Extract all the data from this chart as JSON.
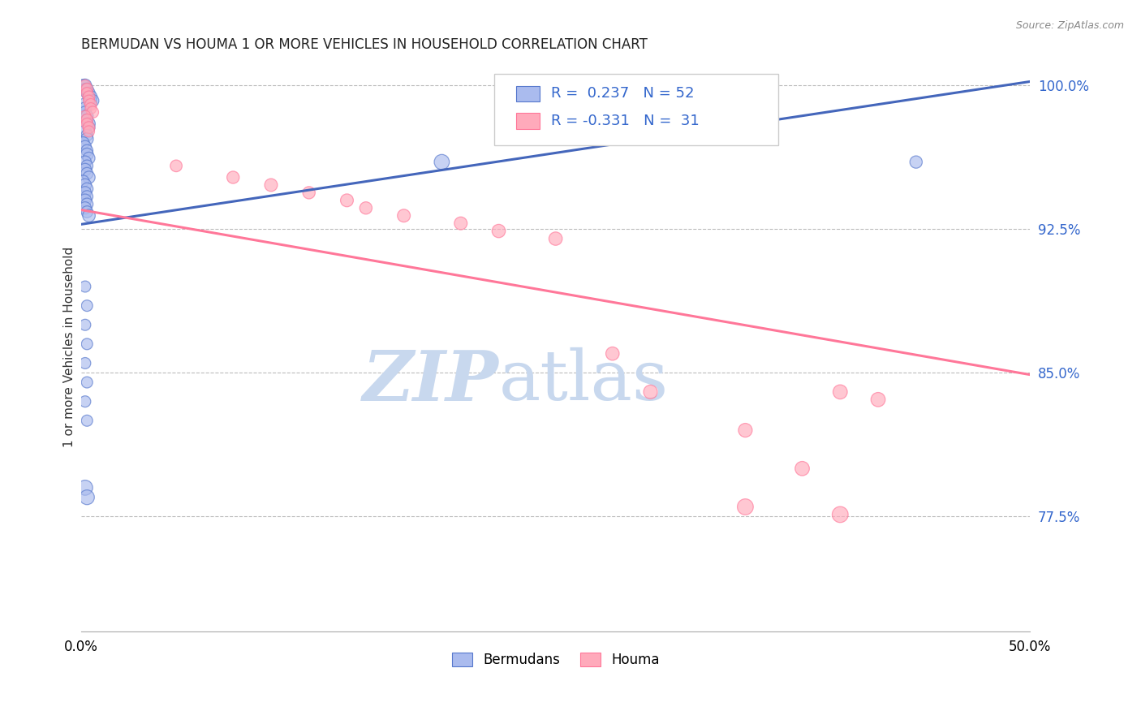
{
  "title": "BERMUDAN VS HOUMA 1 OR MORE VEHICLES IN HOUSEHOLD CORRELATION CHART",
  "source": "Source: ZipAtlas.com",
  "ylabel": "1 or more Vehicles in Household",
  "xlim": [
    0.0,
    0.5
  ],
  "ylim": [
    0.715,
    1.012
  ],
  "xticks": [
    0.0,
    0.1,
    0.2,
    0.3,
    0.4,
    0.5
  ],
  "xticklabels": [
    "0.0%",
    "",
    "",
    "",
    "",
    "50.0%"
  ],
  "yticks": [
    0.775,
    0.85,
    0.925,
    1.0
  ],
  "yticklabels": [
    "77.5%",
    "85.0%",
    "92.5%",
    "100.0%"
  ],
  "legend_r_blue": "R =  0.237",
  "legend_n_blue": "N = 52",
  "legend_r_pink": "R = -0.331",
  "legend_n_pink": "N =  31",
  "blue_fill": "#AABBEE",
  "blue_edge": "#5577CC",
  "pink_fill": "#FFAABB",
  "pink_edge": "#FF7799",
  "blue_line_color": "#4466BB",
  "pink_line_color": "#FF7799",
  "grid_color": "#BBBBBB",
  "watermark_zip": "ZIP",
  "watermark_atlas": "atlas",
  "watermark_color": "#DDEEFF",
  "blue_scatter_x": [
    0.001,
    0.002,
    0.002,
    0.003,
    0.003,
    0.004,
    0.004,
    0.005,
    0.005,
    0.006,
    0.001,
    0.002,
    0.002,
    0.003,
    0.003,
    0.004,
    0.004,
    0.002,
    0.003,
    0.003,
    0.001,
    0.002,
    0.003,
    0.003,
    0.004,
    0.002,
    0.003,
    0.002,
    0.003,
    0.004,
    0.001,
    0.002,
    0.003,
    0.002,
    0.003,
    0.002,
    0.003,
    0.002,
    0.003,
    0.004,
    0.002,
    0.003,
    0.002,
    0.003,
    0.002,
    0.003,
    0.002,
    0.003,
    0.002,
    0.003,
    0.19,
    0.44
  ],
  "blue_scatter_y": [
    1.0,
    1.0,
    0.998,
    0.998,
    0.996,
    0.996,
    0.994,
    0.994,
    0.992,
    0.992,
    0.99,
    0.988,
    0.986,
    0.984,
    0.982,
    0.98,
    0.978,
    0.976,
    0.974,
    0.972,
    0.97,
    0.968,
    0.966,
    0.964,
    0.962,
    0.96,
    0.958,
    0.956,
    0.954,
    0.952,
    0.95,
    0.948,
    0.946,
    0.944,
    0.942,
    0.94,
    0.938,
    0.936,
    0.934,
    0.932,
    0.895,
    0.885,
    0.875,
    0.865,
    0.855,
    0.845,
    0.835,
    0.825,
    0.79,
    0.785,
    0.96,
    0.96
  ],
  "blue_scatter_sizes": [
    120,
    130,
    110,
    125,
    115,
    120,
    110,
    125,
    115,
    120,
    110,
    125,
    115,
    120,
    110,
    125,
    115,
    120,
    110,
    125,
    115,
    120,
    110,
    125,
    115,
    120,
    110,
    125,
    115,
    120,
    110,
    125,
    115,
    120,
    110,
    125,
    115,
    120,
    110,
    125,
    100,
    100,
    100,
    100,
    100,
    100,
    100,
    100,
    180,
    170,
    180,
    120
  ],
  "pink_scatter_x": [
    0.002,
    0.003,
    0.003,
    0.004,
    0.004,
    0.005,
    0.005,
    0.006,
    0.002,
    0.003,
    0.003,
    0.004,
    0.004,
    0.05,
    0.08,
    0.1,
    0.12,
    0.14,
    0.15,
    0.17,
    0.2,
    0.22,
    0.25,
    0.28,
    0.3,
    0.35,
    0.38,
    0.4,
    0.42,
    0.35,
    0.4
  ],
  "pink_scatter_y": [
    1.0,
    0.998,
    0.996,
    0.994,
    0.992,
    0.99,
    0.988,
    0.986,
    0.984,
    0.982,
    0.98,
    0.978,
    0.976,
    0.958,
    0.952,
    0.948,
    0.944,
    0.94,
    0.936,
    0.932,
    0.928,
    0.924,
    0.92,
    0.86,
    0.84,
    0.82,
    0.8,
    0.84,
    0.836,
    0.78,
    0.776
  ],
  "pink_scatter_sizes": [
    100,
    110,
    100,
    110,
    100,
    110,
    100,
    110,
    100,
    110,
    100,
    110,
    100,
    110,
    120,
    130,
    120,
    130,
    120,
    130,
    130,
    140,
    140,
    140,
    150,
    150,
    160,
    160,
    160,
    200,
    200
  ],
  "blue_line_x": [
    0.0,
    0.5
  ],
  "blue_line_y": [
    0.9275,
    1.002
  ],
  "pink_line_x": [
    0.0,
    0.5
  ],
  "pink_line_y": [
    0.935,
    0.849
  ]
}
